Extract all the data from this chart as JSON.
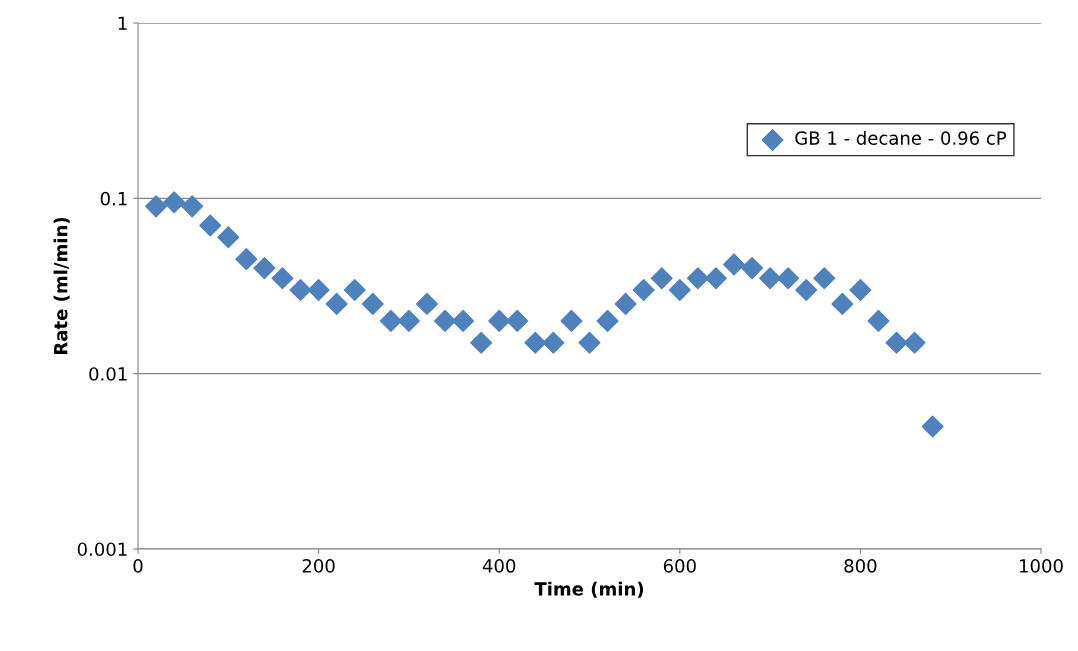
{
  "chart_data": {
    "type": "scatter",
    "xlabel": "Time (min)",
    "ylabel": "Rate (ml/min)",
    "x": [
      20,
      40,
      60,
      80,
      100,
      120,
      140,
      160,
      180,
      200,
      220,
      240,
      260,
      280,
      300,
      320,
      340,
      360,
      380,
      400,
      420,
      440,
      460,
      480,
      500,
      520,
      540,
      560,
      580,
      600,
      620,
      640,
      660,
      680,
      700,
      720,
      740,
      760,
      780,
      800,
      820,
      840,
      860,
      880
    ],
    "series": [
      {
        "name": "GB 1 - decane - 0.96 cP",
        "color": "#4f81bd",
        "values": [
          0.09,
          0.095,
          0.09,
          0.07,
          0.06,
          0.045,
          0.04,
          0.035,
          0.03,
          0.03,
          0.025,
          0.03,
          0.025,
          0.02,
          0.02,
          0.025,
          0.02,
          0.02,
          0.015,
          0.02,
          0.02,
          0.015,
          0.015,
          0.02,
          0.015,
          0.02,
          0.025,
          0.03,
          0.035,
          0.03,
          0.035,
          0.035,
          0.042,
          0.04,
          0.035,
          0.035,
          0.03,
          0.035,
          0.025,
          0.03,
          0.02,
          0.015,
          0.015,
          0.005
        ]
      }
    ],
    "xlim": [
      0,
      1000
    ],
    "xticks": [
      0,
      200,
      400,
      600,
      800,
      1000
    ],
    "ylim": [
      0.001,
      1
    ],
    "yticks": [
      0.001,
      0.01,
      0.1,
      1
    ],
    "log": "y",
    "grid": "y",
    "legend": "top right",
    "marker": "diamond"
  }
}
